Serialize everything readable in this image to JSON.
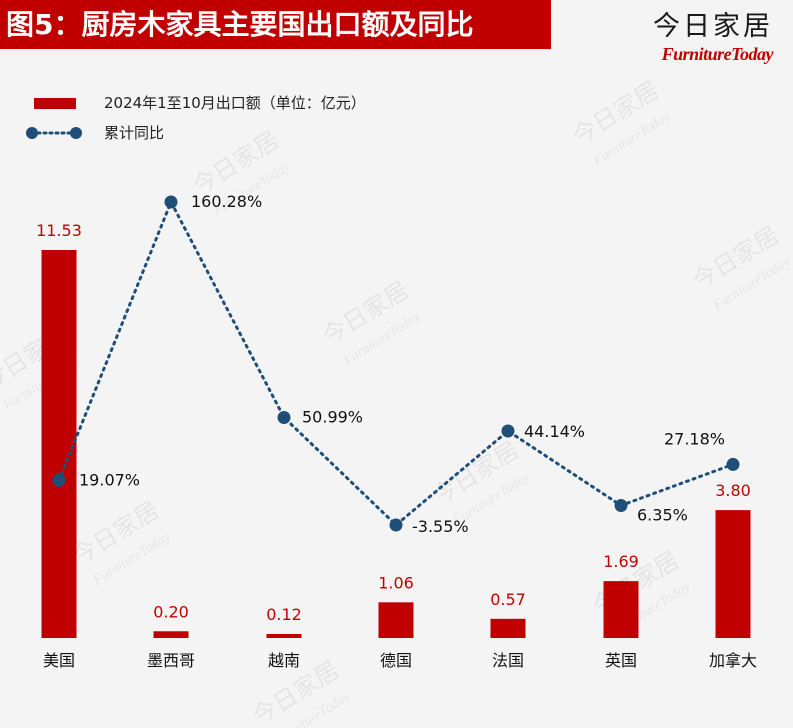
{
  "header": {
    "title": "图5：厨房木家具主要国出口额及同比",
    "brand_cn": "今日家居",
    "brand_en": "FurnitureToday"
  },
  "chart_data": {
    "type": "bar+line",
    "categories": [
      "美国",
      "墨西哥",
      "越南",
      "德国",
      "法国",
      "英国",
      "加拿大"
    ],
    "series": [
      {
        "name": "2024年1至10月出口额（单位：亿元）",
        "kind": "bar",
        "values": [
          11.53,
          0.2,
          0.12,
          1.06,
          0.57,
          1.69,
          3.8
        ],
        "labels": [
          "11.53",
          "0.20",
          "0.12",
          "1.06",
          "0.57",
          "1.69",
          "3.80"
        ],
        "color": "#c00000",
        "ylim": [
          0,
          12.3
        ]
      },
      {
        "name": "累计同比",
        "kind": "line",
        "values": [
          19.07,
          160.28,
          50.99,
          -3.55,
          44.14,
          6.35,
          27.18
        ],
        "labels": [
          "19.07%",
          "160.28%",
          "50.99%",
          "-3.55%",
          "44.14%",
          "6.35%",
          "27.18%"
        ],
        "color": "#1f4e79",
        "ylim": [
          -40,
          180
        ]
      }
    ]
  },
  "colors": {
    "bar": "#c00000",
    "line": "#1f4e79",
    "title_bg": "#c00000",
    "bar_label": "#c00000"
  }
}
